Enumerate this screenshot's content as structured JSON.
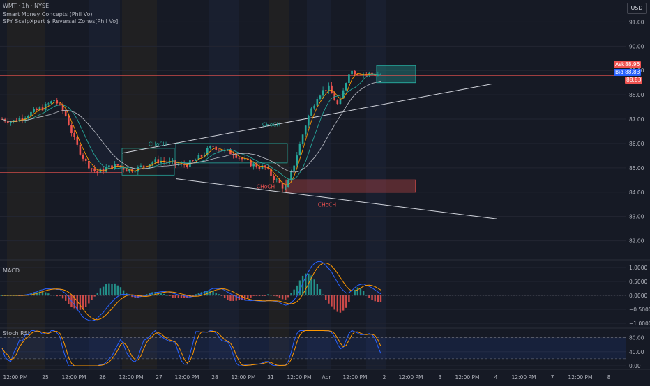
{
  "header": {
    "symbol_line": "WMT · 1h · NYSE",
    "indicator_1": "Smart Money Concepts (Phil Vo)",
    "indicator_2": "SPY ScalpXpert $ Reversal Zones[Phil Vo]",
    "currency": "USD"
  },
  "quotes": {
    "ask_label": "Ask",
    "ask_value": "88.95",
    "bid_label": "Bid",
    "bid_value": "88.83",
    "last_value": "88.83"
  },
  "colors": {
    "background": "#161a25",
    "bull": "#26a69a",
    "bear": "#ef5350",
    "blue_ma": "#2962ff",
    "orange_line": "#ff9800",
    "grid": "#232632"
  },
  "annotations": {
    "choch_1": "CHoCH",
    "choch_2": "CHoCH",
    "choch_3": "CHoCH",
    "choch_4": "CHoCH"
  },
  "chart_data": [
    {
      "type": "candlestick",
      "pane": "price",
      "ylim": [
        81.3,
        91.9
      ],
      "yticks": [
        "91.00",
        "90.00",
        "89.00",
        "88.00",
        "87.00",
        "86.00",
        "85.00",
        "84.00",
        "83.00",
        "82.00"
      ],
      "ytick_values": [
        91,
        90,
        89,
        88,
        87,
        86,
        85,
        84,
        83,
        82
      ],
      "close_path": [
        87.0,
        86.9,
        87.1,
        87.3,
        87.5,
        87.8,
        87.2,
        86.0,
        85.2,
        84.8,
        85.0,
        85.1,
        84.9,
        85.0,
        85.2,
        85.3,
        85.2,
        85.1,
        85.2,
        85.5,
        85.9,
        85.7,
        85.6,
        85.3,
        85.1,
        85.0,
        84.5,
        84.1,
        85.5,
        87.0,
        88.0,
        88.3,
        87.5,
        89.0,
        88.9,
        88.85,
        88.83
      ],
      "zones": [
        {
          "label": "demand",
          "from": 88.5,
          "to": 89.2,
          "color": "#26a69a"
        },
        {
          "label": "supply",
          "from": 84.0,
          "to": 84.5,
          "color": "#ef5350"
        }
      ]
    },
    {
      "type": "line",
      "pane": "MACD",
      "title": "MACD",
      "ylim": [
        -1.15,
        1.15
      ],
      "yticks": [
        "1.0000",
        "0.5000",
        "0.0000",
        "−0.5000",
        "−1.0000"
      ],
      "ytick_values": [
        1.0,
        0.5,
        0.0,
        -0.5,
        -1.0
      ]
    },
    {
      "type": "line",
      "pane": "Stoch RSI",
      "title": "Stoch RSI",
      "ylim": [
        -10,
        105
      ],
      "yticks": [
        "80.00",
        "40.00",
        "0.00"
      ],
      "ytick_values": [
        80,
        40,
        0
      ]
    }
  ],
  "x_axis": {
    "labels": [
      "12:00 PM",
      "25",
      "12:00 PM",
      "26",
      "12:00 PM",
      "27",
      "12:00 PM",
      "28",
      "12:00 PM",
      "31",
      "12:00 PM",
      "Apr",
      "12:00 PM",
      "2",
      "12:00 PM",
      "3",
      "12:00 PM",
      "4",
      "12:00 PM",
      "7",
      "12:00 PM",
      "8"
    ]
  }
}
